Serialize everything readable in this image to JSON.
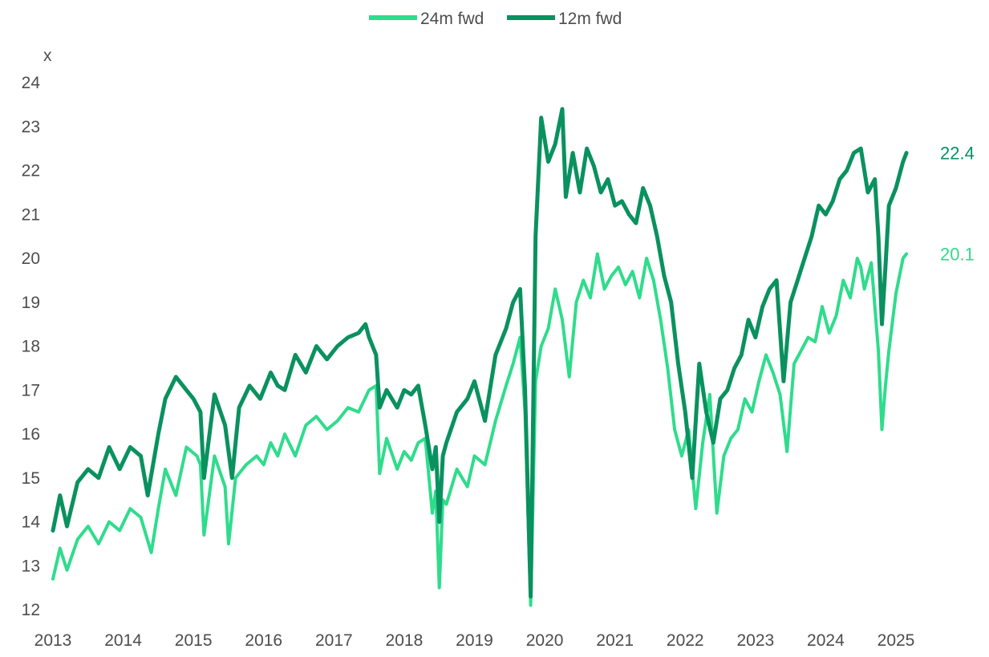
{
  "chart_data": {
    "type": "line",
    "title": "",
    "xlabel": "",
    "ylabel": "x",
    "ylim": [
      12,
      24
    ],
    "xlim": [
      2013,
      2025.3
    ],
    "x_ticks": [
      "2013",
      "2014",
      "2015",
      "2016",
      "2017",
      "2018",
      "2019",
      "2020",
      "2021",
      "2022",
      "2023",
      "2024",
      "2025"
    ],
    "y_ticks": [
      "12",
      "13",
      "14",
      "15",
      "16",
      "17",
      "18",
      "19",
      "20",
      "21",
      "22",
      "23",
      "24"
    ],
    "grid": false,
    "legend_position": "top-center",
    "series": [
      {
        "name": "24m fwd",
        "color": "#2fdc8c",
        "stroke_width": 4,
        "end_label": "20.1",
        "x": [
          2013.0,
          2013.1,
          2013.2,
          2013.35,
          2013.5,
          2013.65,
          2013.8,
          2013.95,
          2014.1,
          2014.25,
          2014.4,
          2014.5,
          2014.6,
          2014.75,
          2014.9,
          2015.05,
          2015.1,
          2015.15,
          2015.3,
          2015.45,
          2015.5,
          2015.6,
          2015.75,
          2015.9,
          2016.0,
          2016.1,
          2016.2,
          2016.3,
          2016.45,
          2016.6,
          2016.75,
          2016.9,
          2017.05,
          2017.2,
          2017.35,
          2017.5,
          2017.6,
          2017.65,
          2017.75,
          2017.9,
          2018.0,
          2018.1,
          2018.2,
          2018.3,
          2018.4,
          2018.45,
          2018.5,
          2018.55,
          2018.6,
          2018.75,
          2018.9,
          2019.0,
          2019.15,
          2019.3,
          2019.45,
          2019.55,
          2019.65,
          2019.72,
          2019.8,
          2019.87,
          2019.95,
          2020.05,
          2020.15,
          2020.25,
          2020.35,
          2020.45,
          2020.55,
          2020.65,
          2020.75,
          2020.85,
          2020.95,
          2021.05,
          2021.15,
          2021.25,
          2021.35,
          2021.45,
          2021.55,
          2021.65,
          2021.75,
          2021.85,
          2021.95,
          2022.05,
          2022.15,
          2022.25,
          2022.35,
          2022.45,
          2022.55,
          2022.65,
          2022.75,
          2022.85,
          2022.95,
          2023.05,
          2023.15,
          2023.25,
          2023.35,
          2023.45,
          2023.55,
          2023.65,
          2023.75,
          2023.85,
          2023.95,
          2024.05,
          2024.15,
          2024.25,
          2024.35,
          2024.45,
          2024.5,
          2024.55,
          2024.65,
          2024.75,
          2024.8,
          2024.85,
          2024.9,
          2025.0,
          2025.1,
          2025.15
        ],
        "values": [
          12.7,
          13.4,
          12.9,
          13.6,
          13.9,
          13.5,
          14.0,
          13.8,
          14.3,
          14.1,
          13.3,
          14.3,
          15.2,
          14.6,
          15.7,
          15.5,
          15.3,
          13.7,
          15.5,
          14.8,
          13.5,
          15.0,
          15.3,
          15.5,
          15.3,
          15.8,
          15.5,
          16.0,
          15.5,
          16.2,
          16.4,
          16.1,
          16.3,
          16.6,
          16.5,
          17.0,
          17.1,
          15.1,
          15.9,
          15.2,
          15.6,
          15.4,
          15.8,
          15.9,
          14.2,
          14.7,
          12.5,
          14.5,
          14.4,
          15.2,
          14.8,
          15.5,
          15.3,
          16.3,
          17.1,
          17.6,
          18.2,
          16.5,
          12.1,
          17.2,
          18.0,
          18.4,
          19.3,
          18.6,
          17.3,
          19.0,
          19.5,
          19.1,
          20.1,
          19.3,
          19.6,
          19.8,
          19.4,
          19.7,
          19.1,
          20.0,
          19.5,
          18.6,
          17.5,
          16.1,
          15.5,
          16.1,
          14.3,
          15.8,
          16.9,
          14.2,
          15.5,
          15.9,
          16.1,
          16.8,
          16.5,
          17.2,
          17.8,
          17.4,
          16.9,
          15.6,
          17.6,
          17.9,
          18.2,
          18.1,
          18.9,
          18.3,
          18.7,
          19.5,
          19.1,
          20.0,
          19.8,
          19.3,
          19.9,
          17.9,
          16.1,
          17.1,
          17.9,
          19.2,
          20.0,
          20.1
        ]
      },
      {
        "name": "12m fwd",
        "color": "#0a9160",
        "stroke_width": 5,
        "end_label": "22.4",
        "x": [
          2013.0,
          2013.1,
          2013.2,
          2013.35,
          2013.5,
          2013.65,
          2013.8,
          2013.95,
          2014.1,
          2014.25,
          2014.35,
          2014.5,
          2014.6,
          2014.75,
          2014.9,
          2015.0,
          2015.1,
          2015.15,
          2015.3,
          2015.45,
          2015.55,
          2015.65,
          2015.8,
          2015.95,
          2016.1,
          2016.2,
          2016.3,
          2016.45,
          2016.6,
          2016.75,
          2016.9,
          2017.05,
          2017.2,
          2017.35,
          2017.45,
          2017.5,
          2017.6,
          2017.65,
          2017.75,
          2017.9,
          2018.0,
          2018.1,
          2018.2,
          2018.3,
          2018.4,
          2018.45,
          2018.5,
          2018.55,
          2018.6,
          2018.75,
          2018.9,
          2019.0,
          2019.15,
          2019.3,
          2019.45,
          2019.55,
          2019.65,
          2019.72,
          2019.8,
          2019.87,
          2019.95,
          2020.05,
          2020.15,
          2020.25,
          2020.3,
          2020.4,
          2020.5,
          2020.6,
          2020.7,
          2020.8,
          2020.9,
          2021.0,
          2021.1,
          2021.2,
          2021.3,
          2021.4,
          2021.5,
          2021.6,
          2021.7,
          2021.8,
          2021.9,
          2022.0,
          2022.1,
          2022.2,
          2022.3,
          2022.4,
          2022.5,
          2022.6,
          2022.7,
          2022.8,
          2022.9,
          2023.0,
          2023.1,
          2023.2,
          2023.3,
          2023.4,
          2023.5,
          2023.6,
          2023.7,
          2023.8,
          2023.9,
          2024.0,
          2024.1,
          2024.2,
          2024.3,
          2024.4,
          2024.5,
          2024.6,
          2024.7,
          2024.75,
          2024.8,
          2024.85,
          2024.9,
          2025.0,
          2025.1,
          2025.15
        ],
        "values": [
          13.8,
          14.6,
          13.9,
          14.9,
          15.2,
          15.0,
          15.7,
          15.2,
          15.7,
          15.5,
          14.6,
          16.0,
          16.8,
          17.3,
          17.0,
          16.8,
          16.5,
          15.0,
          16.9,
          16.2,
          15.0,
          16.6,
          17.1,
          16.8,
          17.4,
          17.1,
          17.0,
          17.8,
          17.4,
          18.0,
          17.7,
          18.0,
          18.2,
          18.3,
          18.5,
          18.2,
          17.8,
          16.6,
          17.0,
          16.6,
          17.0,
          16.9,
          17.1,
          16.2,
          15.2,
          15.7,
          14.0,
          15.5,
          15.8,
          16.5,
          16.8,
          17.2,
          16.3,
          17.8,
          18.4,
          19.0,
          19.3,
          17.0,
          12.3,
          20.5,
          23.2,
          22.2,
          22.6,
          23.4,
          21.4,
          22.4,
          21.5,
          22.5,
          22.1,
          21.5,
          21.8,
          21.2,
          21.3,
          21.0,
          20.8,
          21.6,
          21.2,
          20.5,
          19.6,
          19.0,
          17.6,
          16.5,
          15.0,
          17.6,
          16.5,
          15.8,
          16.8,
          17.0,
          17.5,
          17.8,
          18.6,
          18.2,
          18.9,
          19.3,
          19.5,
          17.2,
          19.0,
          19.5,
          20.0,
          20.5,
          21.2,
          21.0,
          21.3,
          21.8,
          22.0,
          22.4,
          22.5,
          21.5,
          21.8,
          20.5,
          18.5,
          19.8,
          21.2,
          21.6,
          22.2,
          22.4
        ]
      }
    ]
  }
}
